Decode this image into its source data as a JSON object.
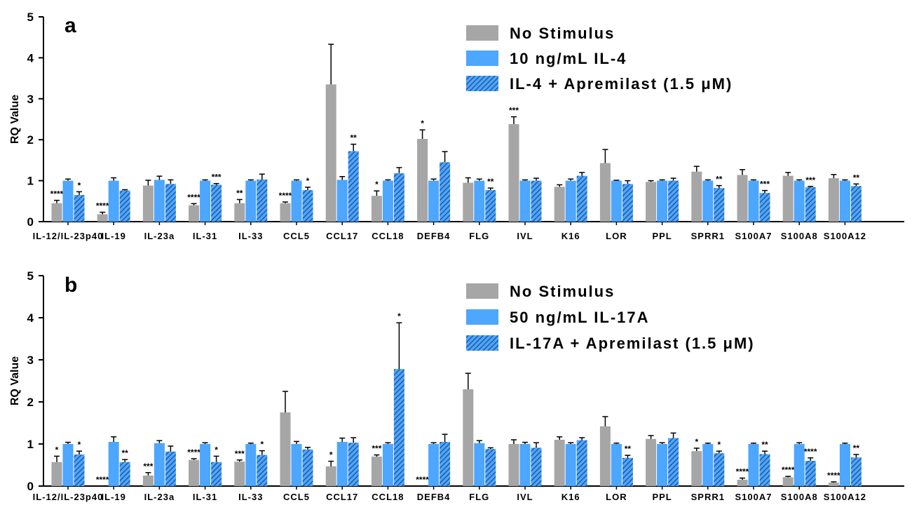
{
  "colors": {
    "no_stimulus": "#a6a6a6",
    "stimulated": "#4da6ff",
    "hatch": "#1f4e8c",
    "axis": "#000000"
  },
  "chart_data": [
    {
      "type": "bar",
      "panel": "a",
      "ylabel": "RQ Value",
      "ylim": [
        0,
        5
      ],
      "yticks": [
        "0",
        "1",
        "2",
        "3",
        "4",
        "5"
      ],
      "categories": [
        "IL-12/IL-23p40",
        "IL-19",
        "IL-23a",
        "IL-31",
        "IL-33",
        "CCL5",
        "CCL17",
        "CCL18",
        "DEFB4",
        "FLG",
        "IVL",
        "K16",
        "LOR",
        "PPL",
        "SPRR1",
        "S100A7",
        "S100A8",
        "S100A12"
      ],
      "legend": [
        "No Stimulus",
        "10 ng/mL IL-4",
        "IL-4 + Apremilast (1.5 μM)"
      ],
      "legend_placement": "top-right",
      "series": [
        {
          "name": "No Stimulus",
          "pattern": "solid-gray",
          "values": [
            0.45,
            0.18,
            0.88,
            0.4,
            0.45,
            0.45,
            3.35,
            0.63,
            2.02,
            0.95,
            2.38,
            0.85,
            1.43,
            0.97,
            1.22,
            1.14,
            1.12,
            1.06
          ],
          "errors": [
            0.07,
            0.05,
            0.13,
            0.04,
            0.09,
            0.03,
            0.98,
            0.12,
            0.22,
            0.12,
            0.18,
            0.05,
            0.33,
            0.03,
            0.13,
            0.13,
            0.08,
            0.09
          ],
          "sig": [
            "****",
            "****",
            "",
            "****",
            "**",
            "****",
            "",
            "*",
            "*",
            "",
            "***",
            "",
            "",
            "",
            "",
            "",
            "",
            ""
          ]
        },
        {
          "name": "10 ng/mL IL-4",
          "pattern": "solid-blue",
          "values": [
            1.0,
            1.0,
            1.02,
            1.0,
            1.0,
            1.0,
            1.02,
            1.0,
            1.0,
            1.0,
            1.0,
            1.0,
            1.0,
            1.0,
            1.0,
            1.0,
            1.0,
            1.0
          ],
          "errors": [
            0.04,
            0.07,
            0.09,
            0.02,
            0.02,
            0.02,
            0.08,
            0.02,
            0.04,
            0.04,
            0.02,
            0.04,
            0.01,
            0.02,
            0.02,
            0.02,
            0.02,
            0.02
          ],
          "sig": [
            "",
            "",
            "",
            "",
            "",
            "",
            "",
            "",
            "",
            "",
            "",
            "",
            "",
            "",
            "",
            "",
            "",
            ""
          ]
        },
        {
          "name": "IL-4 + Apremilast (1.5 μM)",
          "pattern": "hatched-blue",
          "values": [
            0.65,
            0.76,
            0.92,
            0.9,
            1.03,
            0.77,
            1.72,
            1.18,
            1.45,
            0.77,
            1.0,
            1.12,
            0.92,
            1.0,
            0.82,
            0.7,
            0.84,
            0.87
          ],
          "errors": [
            0.08,
            0.02,
            0.1,
            0.03,
            0.13,
            0.07,
            0.17,
            0.14,
            0.26,
            0.05,
            0.06,
            0.08,
            0.08,
            0.06,
            0.06,
            0.06,
            0.02,
            0.05
          ],
          "sig": [
            "*",
            "",
            "",
            "***",
            "",
            "*",
            "**",
            "",
            "",
            "**",
            "",
            "",
            "",
            "",
            "**",
            "***",
            "***",
            "**"
          ]
        }
      ]
    },
    {
      "type": "bar",
      "panel": "b",
      "ylabel": "RQ Value",
      "ylim": [
        0,
        5
      ],
      "yticks": [
        "0",
        "1",
        "2",
        "3",
        "4",
        "5"
      ],
      "categories": [
        "IL-12/IL-23p40",
        "IL-19",
        "IL-23a",
        "IL-31",
        "IL-33",
        "CCL5",
        "CCL17",
        "CCL18",
        "DEFB4",
        "FLG",
        "IVL",
        "K16",
        "LOR",
        "PPL",
        "SPRR1",
        "S100A7",
        "S100A8",
        "S100A12"
      ],
      "legend": [
        "No Stimulus",
        "50 ng/mL IL-17A",
        "IL-17A + Apremilast (1.5 μM)"
      ],
      "legend_placement": "top-right",
      "series": [
        {
          "name": "No Stimulus",
          "pattern": "solid-gray",
          "values": [
            0.57,
            0.0,
            0.25,
            0.62,
            0.58,
            1.75,
            0.47,
            0.7,
            0.0,
            2.3,
            1.0,
            1.1,
            1.42,
            1.12,
            0.83,
            0.15,
            0.21,
            0.08
          ],
          "errors": [
            0.14,
            0.0,
            0.07,
            0.03,
            0.04,
            0.5,
            0.12,
            0.04,
            0.0,
            0.38,
            0.1,
            0.07,
            0.23,
            0.08,
            0.07,
            0.04,
            0.02,
            0.02
          ],
          "sig": [
            "*",
            "****",
            "***",
            "****",
            "***",
            "",
            "*",
            "***",
            "****",
            "",
            "",
            "",
            "",
            "",
            "*",
            "****",
            "****",
            "****"
          ]
        },
        {
          "name": "50 ng/mL IL-17A",
          "pattern": "solid-blue",
          "values": [
            1.0,
            1.05,
            1.02,
            1.0,
            1.0,
            1.0,
            1.05,
            1.0,
            1.0,
            1.02,
            1.0,
            1.0,
            1.0,
            1.0,
            1.0,
            1.0,
            1.0,
            1.0
          ],
          "errors": [
            0.04,
            0.12,
            0.06,
            0.03,
            0.02,
            0.06,
            0.09,
            0.03,
            0.03,
            0.06,
            0.04,
            0.03,
            0.02,
            0.03,
            0.02,
            0.02,
            0.03,
            0.02
          ],
          "sig": [
            "",
            "",
            "",
            "",
            "",
            "",
            "",
            "",
            "",
            "",
            "",
            "",
            "",
            "",
            "",
            "",
            "",
            ""
          ]
        },
        {
          "name": "IL-17A + Apremilast (1.5 μM)",
          "pattern": "hatched-blue",
          "values": [
            0.75,
            0.57,
            0.82,
            0.57,
            0.74,
            0.87,
            1.03,
            2.78,
            1.05,
            0.88,
            0.91,
            1.09,
            0.67,
            1.14,
            0.78,
            0.76,
            0.6,
            0.68
          ],
          "errors": [
            0.08,
            0.06,
            0.13,
            0.14,
            0.1,
            0.05,
            0.12,
            1.1,
            0.18,
            0.03,
            0.12,
            0.06,
            0.06,
            0.12,
            0.05,
            0.07,
            0.07,
            0.07
          ],
          "sig": [
            "*",
            "**",
            "",
            "*",
            "*",
            "",
            "",
            "*",
            "",
            "",
            "",
            "",
            "**",
            "",
            "*",
            "**",
            "****",
            "**"
          ]
        }
      ]
    }
  ]
}
